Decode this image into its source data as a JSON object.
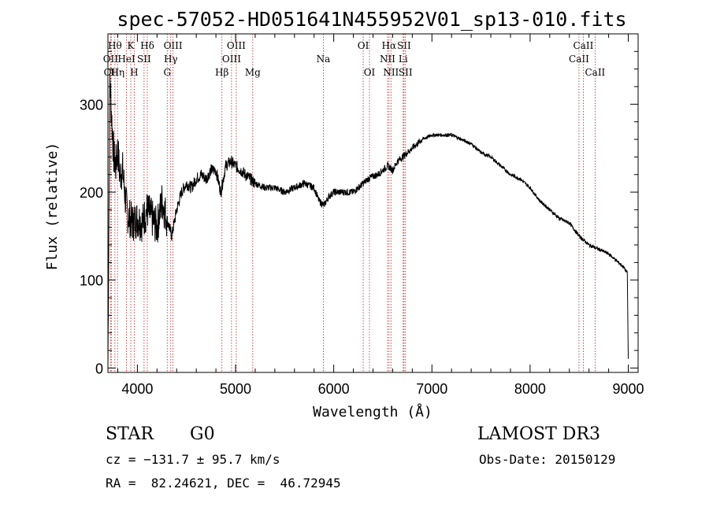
{
  "chart_data": {
    "type": "line",
    "title": "spec-57052-HD051641N455952V01_sp13-010.fits",
    "xlabel": "Wavelength (Å)",
    "ylabel": "Flux (relative)",
    "xlim": [
      3700,
      9100
    ],
    "ylim": [
      -5,
      380
    ],
    "xticks": [
      4000,
      5000,
      6000,
      7000,
      8000,
      9000
    ],
    "yticks": [
      0,
      100,
      200,
      300
    ],
    "grid": false,
    "series": [
      {
        "name": "flux",
        "color": "#000000",
        "x": [
          3700,
          3720,
          3740,
          3760,
          3780,
          3800,
          3820,
          3850,
          3880,
          3900,
          3950,
          4000,
          4050,
          4100,
          4150,
          4200,
          4250,
          4300,
          4350,
          4400,
          4450,
          4500,
          4550,
          4600,
          4650,
          4700,
          4750,
          4800,
          4850,
          4900,
          4950,
          5000,
          5050,
          5100,
          5150,
          5200,
          5300,
          5400,
          5500,
          5600,
          5700,
          5800,
          5850,
          5900,
          5950,
          6000,
          6100,
          6200,
          6250,
          6300,
          6350,
          6400,
          6450,
          6500,
          6550,
          6600,
          6650,
          6700,
          6800,
          6900,
          7000,
          7100,
          7200,
          7300,
          7400,
          7500,
          7600,
          7700,
          7800,
          7900,
          8000,
          8100,
          8200,
          8300,
          8400,
          8500,
          8600,
          8700,
          8800,
          8900,
          8950,
          8990,
          9000
        ],
        "y": [
          0,
          330,
          280,
          240,
          230,
          250,
          220,
          225,
          190,
          175,
          165,
          170,
          165,
          180,
          170,
          160,
          190,
          170,
          150,
          180,
          200,
          210,
          205,
          215,
          220,
          215,
          225,
          225,
          200,
          230,
          235,
          230,
          225,
          220,
          215,
          210,
          205,
          205,
          200,
          205,
          210,
          205,
          190,
          185,
          195,
          200,
          200,
          200,
          205,
          210,
          215,
          218,
          220,
          225,
          230,
          225,
          235,
          240,
          250,
          260,
          265,
          265,
          265,
          260,
          255,
          245,
          240,
          230,
          220,
          215,
          205,
          190,
          180,
          170,
          165,
          150,
          140,
          135,
          130,
          120,
          115,
          108,
          10
        ]
      }
    ],
    "line_markers": [
      {
        "wl": 3727,
        "label": "OII",
        "row": 2
      },
      {
        "wl": 3734,
        "label": "OII",
        "row": 3
      },
      {
        "wl": 3771,
        "label": "Hθ",
        "row": 1
      },
      {
        "wl": 3798,
        "label": "Hη",
        "row": 3
      },
      {
        "wl": 3889,
        "label": "HeI",
        "row": 2
      },
      {
        "wl": 3933,
        "label": "K",
        "row": 1
      },
      {
        "wl": 3968,
        "label": "H",
        "row": 3
      },
      {
        "wl": 4068,
        "label": "SII",
        "row": 2
      },
      {
        "wl": 4101,
        "label": "Hδ",
        "row": 1
      },
      {
        "wl": 4304,
        "label": "G",
        "row": 3
      },
      {
        "wl": 4340,
        "label": "Hγ",
        "row": 2
      },
      {
        "wl": 4363,
        "label": "OIII",
        "row": 1
      },
      {
        "wl": 4861,
        "label": "Hβ",
        "row": 3
      },
      {
        "wl": 4959,
        "label": "OIII",
        "row": 2
      },
      {
        "wl": 5007,
        "label": "OIII",
        "row": 1
      },
      {
        "wl": 5175,
        "label": "Mg",
        "row": 3
      },
      {
        "wl": 5894,
        "label": "Na",
        "row": 2
      },
      {
        "wl": 6300,
        "label": "OI",
        "row": 1
      },
      {
        "wl": 6364,
        "label": "OI",
        "row": 3
      },
      {
        "wl": 6548,
        "label": "NII",
        "row": 2
      },
      {
        "wl": 6563,
        "label": "Hα",
        "row": 1
      },
      {
        "wl": 6583,
        "label": "NII",
        "row": 3
      },
      {
        "wl": 6707,
        "label": "Li",
        "row": 2
      },
      {
        "wl": 6716,
        "label": "SII",
        "row": 1
      },
      {
        "wl": 6731,
        "label": "SII",
        "row": 3
      },
      {
        "wl": 8498,
        "label": "CaII",
        "row": 2
      },
      {
        "wl": 8542,
        "label": "CaII",
        "row": 1
      },
      {
        "wl": 8662,
        "label": "CaII",
        "row": 3
      }
    ]
  },
  "info": {
    "class": "STAR",
    "subclass": "G0",
    "survey": "LAMOST DR3",
    "cz": "cz = −131.7 ± 95.7 km/s",
    "obs_date": "Obs-Date: 20150129",
    "coords": "RA =  82.24621, DEC =  46.72945"
  }
}
